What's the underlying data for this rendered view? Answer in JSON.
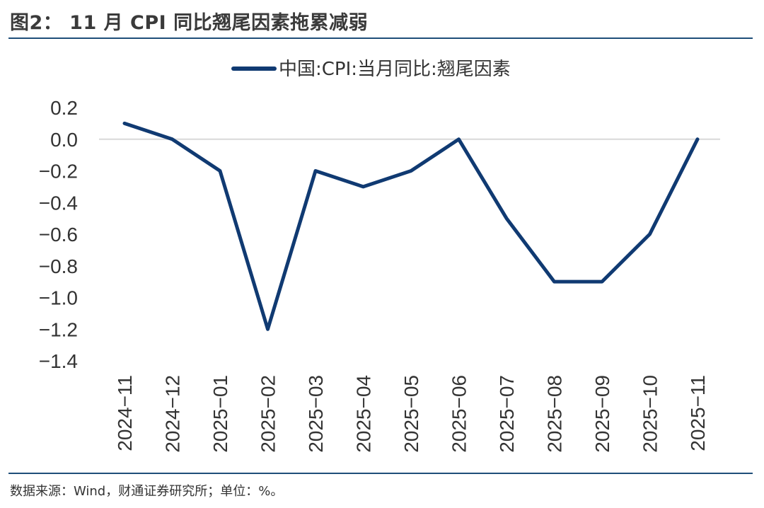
{
  "figure": {
    "title": "图2： 11 月 CPI 同比翘尾因素拖累减弱",
    "source": "数据来源：Wind，财通证券研究所；单位：%。"
  },
  "colors": {
    "line": "#103a72",
    "rule": "#1f4e79",
    "zero_line": "#d9d9d9"
  },
  "chart_data": {
    "type": "line",
    "title": "",
    "xlabel": "",
    "ylabel": "",
    "legend_position": "top-center",
    "grid": false,
    "ylim": [
      -1.4,
      0.2
    ],
    "yticks": [
      "0.2",
      "0.0",
      "−0.2",
      "−0.4",
      "−0.6",
      "−0.8",
      "−1.0",
      "−1.2",
      "−1.4"
    ],
    "ytick_values": [
      0.2,
      0.0,
      -0.2,
      -0.4,
      -0.6,
      -0.8,
      -1.0,
      -1.2,
      -1.4
    ],
    "categories": [
      "2024−11",
      "2024−12",
      "2025−01",
      "2025−02",
      "2025−03",
      "2025−04",
      "2025−05",
      "2025−06",
      "2025−07",
      "2025−08",
      "2025−09",
      "2025−10",
      "2025−11"
    ],
    "series": [
      {
        "name": "中国:CPI:当月同比:翘尾因素",
        "values": [
          0.1,
          0.0,
          -0.2,
          -1.2,
          -0.2,
          -0.3,
          -0.2,
          0.0,
          -0.5,
          -0.9,
          -0.9,
          -0.6,
          0.0
        ]
      }
    ]
  }
}
